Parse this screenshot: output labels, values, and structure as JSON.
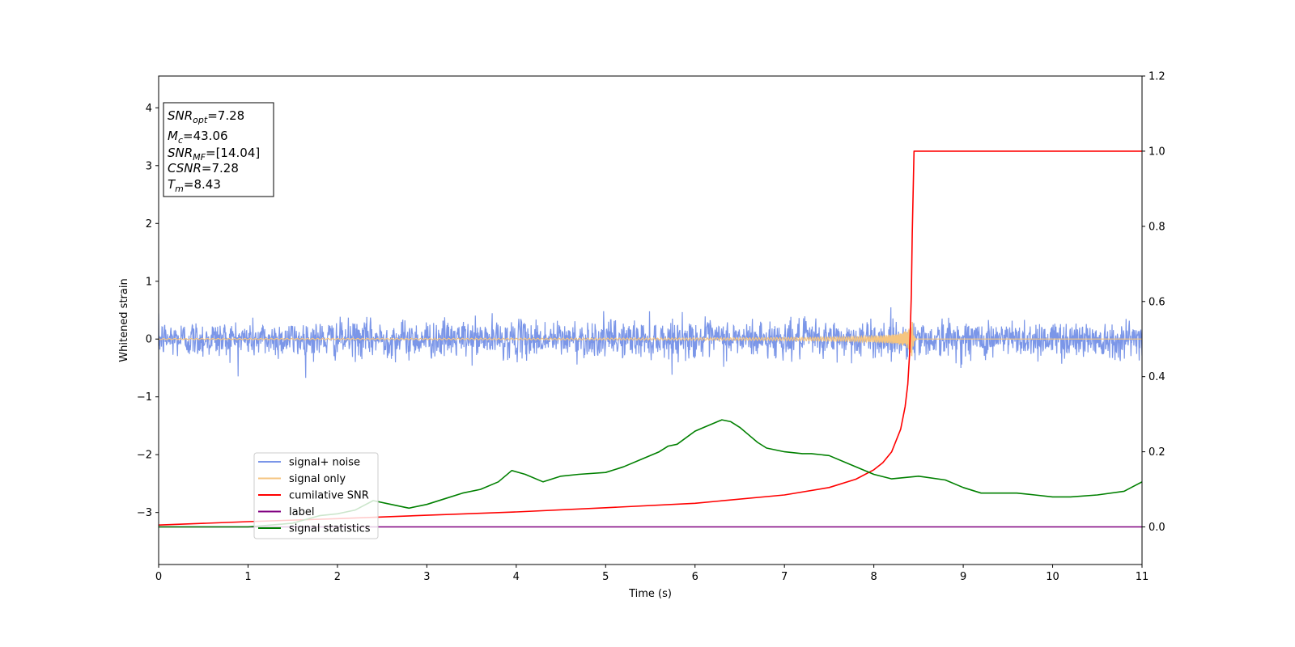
{
  "chart_data": {
    "type": "line",
    "xlabel": "Time (s)",
    "ylabel": "Whitened strain",
    "xlim": [
      0,
      11
    ],
    "ylim_left": [
      -3.9,
      4.55
    ],
    "ylim_right": [
      -0.1,
      1.2
    ],
    "x_ticks": [
      0,
      1,
      2,
      3,
      4,
      5,
      6,
      7,
      8,
      9,
      10,
      11
    ],
    "y_ticks_left": [
      -3,
      -2,
      -1,
      0,
      1,
      2,
      3,
      4
    ],
    "y_ticks_right": [
      0.0,
      0.2,
      0.4,
      0.6,
      0.8,
      1.0,
      1.2
    ],
    "grid": false,
    "legend_placement": "lower-left",
    "info_box": {
      "snr_opt": {
        "symbol": "SNR",
        "sub": "opt",
        "value": "=7.28"
      },
      "mc": {
        "symbol": "M",
        "sub": "c",
        "value": "=43.06"
      },
      "snr_mf": {
        "symbol": "SNR",
        "sub": "MF",
        "value": "=[14.04]"
      },
      "csnr": {
        "symbol": "CSNR",
        "sub": "",
        "value": "=7.28"
      },
      "tm": {
        "symbol": "T",
        "sub": "m",
        "value": "=8.43"
      }
    },
    "series": [
      {
        "name": "signal+ noise",
        "axis": "left",
        "color": "#7b96e8",
        "kind": "noise",
        "amplitude_typical": 0.3,
        "amplitude_max": 0.8,
        "x_range": [
          0,
          11
        ]
      },
      {
        "name": "signal only",
        "axis": "left",
        "color": "#f5c580",
        "kind": "chirp",
        "merger_time": 8.43,
        "peak_amplitude": 0.35,
        "x_range": [
          0,
          11
        ]
      },
      {
        "name": "cumilative SNR",
        "axis": "right",
        "color": "#ff0000",
        "x": [
          0,
          1,
          2,
          3,
          4,
          5,
          6,
          7,
          7.5,
          7.8,
          8.0,
          8.1,
          8.2,
          8.3,
          8.35,
          8.38,
          8.4,
          8.42,
          8.43,
          8.45,
          9,
          10,
          11
        ],
        "y": [
          0.005,
          0.014,
          0.022,
          0.031,
          0.04,
          0.051,
          0.063,
          0.085,
          0.105,
          0.127,
          0.152,
          0.171,
          0.2,
          0.26,
          0.32,
          0.38,
          0.46,
          0.62,
          0.78,
          1.0,
          1.0,
          1.0,
          1.0
        ]
      },
      {
        "name": "label",
        "axis": "right",
        "color": "#800080",
        "x": [
          0,
          11
        ],
        "y": [
          0.0,
          0.0
        ]
      },
      {
        "name": "signal statistics",
        "axis": "right",
        "color": "#008000",
        "x": [
          0,
          1,
          1.5,
          1.8,
          2.0,
          2.2,
          2.4,
          2.6,
          2.8,
          3.0,
          3.2,
          3.4,
          3.6,
          3.8,
          3.95,
          4.1,
          4.3,
          4.5,
          4.7,
          5.0,
          5.2,
          5.4,
          5.6,
          5.7,
          5.8,
          6.0,
          6.1,
          6.2,
          6.3,
          6.4,
          6.5,
          6.6,
          6.7,
          6.8,
          7.0,
          7.2,
          7.3,
          7.5,
          7.7,
          8.0,
          8.2,
          8.5,
          8.8,
          9.0,
          9.2,
          9.4,
          9.6,
          9.8,
          10.0,
          10.2,
          10.5,
          10.8,
          11.0
        ],
        "y": [
          0.0,
          0.0,
          0.01,
          0.03,
          0.035,
          0.045,
          0.07,
          0.06,
          0.05,
          0.06,
          0.075,
          0.09,
          0.1,
          0.12,
          0.15,
          0.14,
          0.12,
          0.135,
          0.14,
          0.145,
          0.16,
          0.18,
          0.2,
          0.215,
          0.22,
          0.255,
          0.265,
          0.275,
          0.285,
          0.28,
          0.265,
          0.245,
          0.225,
          0.21,
          0.2,
          0.195,
          0.195,
          0.19,
          0.17,
          0.14,
          0.128,
          0.135,
          0.125,
          0.105,
          0.09,
          0.09,
          0.09,
          0.085,
          0.08,
          0.08,
          0.085,
          0.095,
          0.12
        ]
      }
    ]
  }
}
